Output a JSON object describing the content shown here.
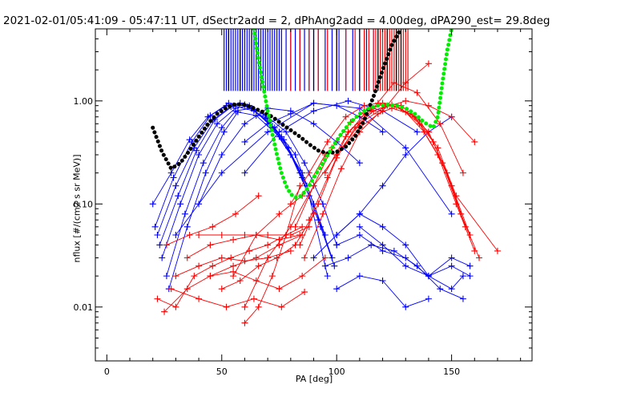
{
  "chart_data": {
    "type": "line",
    "title": "2021-02-01/05:41:09 - 05:47:11 UT, dSectr2add = 2, dPhAng2add = 4.00deg, dPA290_est=  29.8deg",
    "xlabel": "PA [deg]",
    "ylabel": "nflux [#/(cm2 s sr MeV)]",
    "xlim": [
      -5,
      185
    ],
    "ylim": [
      0.003,
      5.0
    ],
    "yscale": "log",
    "grid": false,
    "x_ticks": [
      0,
      50,
      100,
      150
    ],
    "x_tick_labels": [
      "0",
      "50",
      "100",
      "150"
    ],
    "y_ticks": [
      0.01,
      0.1,
      1.0
    ],
    "y_tick_labels": [
      "0.01",
      "0.10",
      "1.00"
    ],
    "colors": {
      "blue_series": "#0000ff",
      "red_series": "#ff0000",
      "black_fit": "#000000",
      "green_fit": "#00ee00"
    },
    "series": [
      {
        "color": "blue",
        "marker": "+",
        "curves": [
          {
            "x": [
              20,
              28,
              36,
              44,
              52,
              58,
              64,
              72,
              80,
              88,
              96
            ],
            "y": [
              0.1,
              0.2,
              0.42,
              0.7,
              0.9,
              0.95,
              0.82,
              0.55,
              0.3,
              0.12,
              0.02
            ]
          },
          {
            "x": [
              22,
              30,
              38,
              46,
              54,
              60,
              68,
              76,
              84,
              92
            ],
            "y": [
              0.05,
              0.15,
              0.35,
              0.65,
              0.88,
              0.92,
              0.75,
              0.45,
              0.2,
              0.07
            ]
          },
          {
            "x": [
              24,
              32,
              40,
              48,
              56,
              62,
              70,
              78,
              86,
              94,
              100
            ],
            "y": [
              0.03,
              0.1,
              0.3,
              0.6,
              0.85,
              0.9,
              0.7,
              0.5,
              0.25,
              0.1,
              0.04
            ]
          },
          {
            "x": [
              26,
              34,
              42,
              50,
              56,
              63,
              71,
              79,
              87
            ],
            "y": [
              0.02,
              0.08,
              0.25,
              0.55,
              0.8,
              0.85,
              0.6,
              0.35,
              0.15
            ]
          },
          {
            "x": [
              21,
              29,
              37,
              45,
              53,
              61,
              69,
              77,
              85,
              93,
              99
            ],
            "y": [
              0.06,
              0.18,
              0.4,
              0.72,
              0.95,
              0.88,
              0.68,
              0.42,
              0.18,
              0.06,
              0.025
            ]
          },
          {
            "x": [
              23,
              31,
              39,
              47,
              55,
              64,
              73,
              82,
              90,
              98
            ],
            "y": [
              0.04,
              0.12,
              0.33,
              0.66,
              0.9,
              0.8,
              0.55,
              0.3,
              0.1,
              0.03
            ]
          },
          {
            "x": [
              27,
              35,
              43,
              51,
              57,
              65,
              75,
              85,
              95
            ],
            "y": [
              0.015,
              0.06,
              0.2,
              0.5,
              0.78,
              0.72,
              0.45,
              0.2,
              0.05
            ]
          },
          {
            "x": [
              40,
              50,
              60,
              70,
              80,
              90,
              100,
              110
            ],
            "y": [
              0.1,
              0.3,
              0.6,
              0.85,
              0.8,
              0.6,
              0.4,
              0.25
            ]
          },
          {
            "x": [
              60,
              70,
              80,
              90,
              100,
              110,
              120
            ],
            "y": [
              0.4,
              0.6,
              0.75,
              0.95,
              0.9,
              0.7,
              0.5
            ]
          },
          {
            "x": [
              100,
              110,
              120,
              130,
              140,
              150
            ],
            "y": [
              0.05,
              0.08,
              0.15,
              0.3,
              0.5,
              0.7
            ]
          },
          {
            "x": [
              90,
              100,
              110,
              120,
              130,
              140,
              150,
              155
            ],
            "y": [
              0.03,
              0.05,
              0.08,
              0.06,
              0.04,
              0.02,
              0.015,
              0.02
            ]
          },
          {
            "x": [
              95,
              105,
              115,
              125,
              135,
              145,
              155
            ],
            "y": [
              0.025,
              0.03,
              0.04,
              0.035,
              0.025,
              0.015,
              0.012
            ]
          },
          {
            "x": [
              100,
              110,
              120,
              130,
              140,
              150,
              158
            ],
            "y": [
              0.04,
              0.05,
              0.035,
              0.03,
              0.02,
              0.025,
              0.02
            ]
          },
          {
            "x": [
              110,
              120,
              130,
              140,
              150,
              158
            ],
            "y": [
              0.06,
              0.04,
              0.025,
              0.02,
              0.03,
              0.025
            ]
          },
          {
            "x": [
              60,
              75,
              90,
              105,
              120,
              135
            ],
            "y": [
              0.2,
              0.5,
              0.8,
              1.0,
              0.8,
              0.5
            ]
          },
          {
            "x": [
              30,
              50,
              70,
              90,
              110,
              130,
              150
            ],
            "y": [
              0.05,
              0.2,
              0.5,
              0.95,
              0.85,
              0.35,
              0.08
            ]
          },
          {
            "x": [
              100,
              110,
              120,
              130,
              140
            ],
            "y": [
              0.015,
              0.02,
              0.018,
              0.01,
              0.012
            ]
          }
        ]
      },
      {
        "color": "red",
        "marker": "+",
        "curves": [
          {
            "x": [
              80,
              88,
              96,
              104,
              112,
              118,
              124,
              130,
              138,
              146,
              154,
              162
            ],
            "y": [
              0.1,
              0.2,
              0.4,
              0.7,
              0.9,
              0.95,
              0.92,
              0.78,
              0.5,
              0.25,
              0.08,
              0.03
            ]
          },
          {
            "x": [
              82,
              90,
              98,
              106,
              114,
              120,
              126,
              134,
              142,
              150,
              158
            ],
            "y": [
              0.06,
              0.15,
              0.35,
              0.62,
              0.85,
              0.92,
              0.88,
              0.7,
              0.4,
              0.15,
              0.05
            ]
          },
          {
            "x": [
              84,
              92,
              100,
              108,
              116,
              122,
              128,
              136,
              144,
              152,
              160
            ],
            "y": [
              0.04,
              0.1,
              0.28,
              0.55,
              0.8,
              0.9,
              0.85,
              0.6,
              0.3,
              0.1,
              0.035
            ]
          },
          {
            "x": [
              86,
              94,
              102,
              110,
              118,
              124,
              132,
              140,
              148,
              156
            ],
            "y": [
              0.03,
              0.08,
              0.22,
              0.5,
              0.75,
              0.85,
              0.75,
              0.5,
              0.2,
              0.06
            ]
          },
          {
            "x": [
              88,
              96,
              104,
              112,
              120,
              128,
              136,
              144,
              152,
              170
            ],
            "y": [
              0.07,
              0.18,
              0.45,
              0.75,
              0.95,
              0.9,
              0.65,
              0.35,
              0.12,
              0.035
            ]
          },
          {
            "x": [
              100,
              110,
              120,
              130,
              140,
              150,
              160
            ],
            "y": [
              0.3,
              0.6,
              0.85,
              1.0,
              0.9,
              0.7,
              0.4
            ]
          },
          {
            "x": [
              95,
              105,
              115,
              125,
              135,
              145,
              155
            ],
            "y": [
              0.2,
              0.5,
              0.8,
              1.5,
              1.2,
              0.6,
              0.2
            ]
          },
          {
            "x": [
              22,
              30,
              38,
              46,
              54,
              62,
              70,
              78,
              85
            ],
            "y": [
              0.012,
              0.01,
              0.02,
              0.025,
              0.03,
              0.035,
              0.04,
              0.05,
              0.06
            ]
          },
          {
            "x": [
              25,
              35,
              45,
              55,
              65,
              75,
              85
            ],
            "y": [
              0.009,
              0.015,
              0.02,
              0.025,
              0.03,
              0.04,
              0.05
            ]
          },
          {
            "x": [
              30,
              40,
              50,
              60,
              70,
              80
            ],
            "y": [
              0.02,
              0.025,
              0.03,
              0.028,
              0.03,
              0.035
            ]
          },
          {
            "x": [
              35,
              45,
              55,
              65,
              75,
              84
            ],
            "y": [
              0.03,
              0.04,
              0.045,
              0.05,
              0.045,
              0.05
            ]
          },
          {
            "x": [
              40,
              50,
              60,
              70,
              80,
              88
            ],
            "y": [
              0.05,
              0.05,
              0.05,
              0.05,
              0.05,
              0.06
            ]
          },
          {
            "x": [
              28,
              40,
              52,
              64,
              76,
              86
            ],
            "y": [
              0.015,
              0.012,
              0.01,
              0.012,
              0.01,
              0.014
            ]
          },
          {
            "x": [
              45,
              55,
              65,
              75,
              85,
              95
            ],
            "y": [
              0.02,
              0.022,
              0.018,
              0.015,
              0.02,
              0.03
            ]
          },
          {
            "x": [
              50,
              58,
              66,
              74,
              82,
              90
            ],
            "y": [
              0.015,
              0.018,
              0.025,
              0.03,
              0.04,
              0.08
            ]
          },
          {
            "x": [
              60,
              66,
              72,
              78,
              84
            ],
            "y": [
              0.007,
              0.01,
              0.02,
              0.05,
              0.15
            ]
          },
          {
            "x": [
              26,
              36,
              46,
              56,
              66
            ],
            "y": [
              0.04,
              0.05,
              0.06,
              0.08,
              0.12
            ]
          },
          {
            "x": [
              55,
              65,
              75,
              85,
              95
            ],
            "y": [
              0.02,
              0.05,
              0.08,
              0.12,
              0.3
            ]
          },
          {
            "x": [
              60,
              70,
              80,
              90,
              100,
              110,
              120,
              130,
              140
            ],
            "y": [
              0.01,
              0.03,
              0.06,
              0.15,
              0.3,
              0.55,
              0.8,
              1.5,
              2.3
            ]
          }
        ]
      },
      {
        "color": "black",
        "marker": "thick-dots",
        "x": [
          20,
          24,
          28,
          32,
          36,
          40,
          44,
          48,
          52,
          56,
          60,
          64,
          68,
          72,
          76,
          80,
          84,
          88,
          92,
          96,
          100,
          104,
          108,
          112,
          116,
          120,
          124,
          128
        ],
        "y": [
          0.55,
          0.32,
          0.22,
          0.25,
          0.33,
          0.45,
          0.6,
          0.75,
          0.86,
          0.93,
          0.92,
          0.85,
          0.78,
          0.7,
          0.6,
          0.52,
          0.45,
          0.38,
          0.33,
          0.31,
          0.32,
          0.36,
          0.45,
          0.65,
          1.1,
          2.0,
          3.5,
          5.0
        ]
      },
      {
        "color": "green",
        "marker": "thick-dots",
        "x": [
          64,
          66,
          68,
          70,
          72,
          74,
          76,
          78,
          80,
          82,
          84,
          86,
          88,
          90,
          94,
          98,
          102,
          106,
          110,
          114,
          118,
          122,
          126,
          130,
          134,
          138,
          142,
          144,
          146,
          148,
          150
        ],
        "y": [
          5.0,
          2.5,
          1.4,
          0.8,
          0.48,
          0.3,
          0.2,
          0.15,
          0.125,
          0.115,
          0.118,
          0.13,
          0.15,
          0.18,
          0.25,
          0.35,
          0.48,
          0.62,
          0.75,
          0.85,
          0.9,
          0.92,
          0.9,
          0.85,
          0.75,
          0.62,
          0.55,
          0.7,
          1.5,
          3.0,
          5.0
        ]
      },
      {
        "color": "blue",
        "marker": "vertical-ticks",
        "x": [
          51,
          52,
          53,
          54,
          55,
          56,
          57,
          58,
          59,
          60,
          61,
          62,
          63,
          64,
          65,
          66,
          67,
          68,
          69,
          70,
          71,
          72,
          73,
          74,
          75,
          76,
          78,
          80,
          82,
          84,
          86,
          88,
          90,
          92,
          95,
          98,
          101,
          104,
          107,
          110,
          113,
          116
        ]
      },
      {
        "color": "red",
        "marker": "vertical-ticks",
        "x": [
          80,
          84,
          88,
          92,
          96,
          100,
          104,
          108,
          112,
          114,
          116,
          117,
          118,
          119,
          120,
          121,
          122,
          123,
          124,
          125,
          126,
          127,
          128,
          129,
          130,
          131
        ]
      },
      {
        "color": "black",
        "marker": "vertical-ticks",
        "x": [
          53,
          58,
          63,
          90,
          100,
          110,
          118,
          122,
          126,
          128
        ]
      }
    ]
  }
}
